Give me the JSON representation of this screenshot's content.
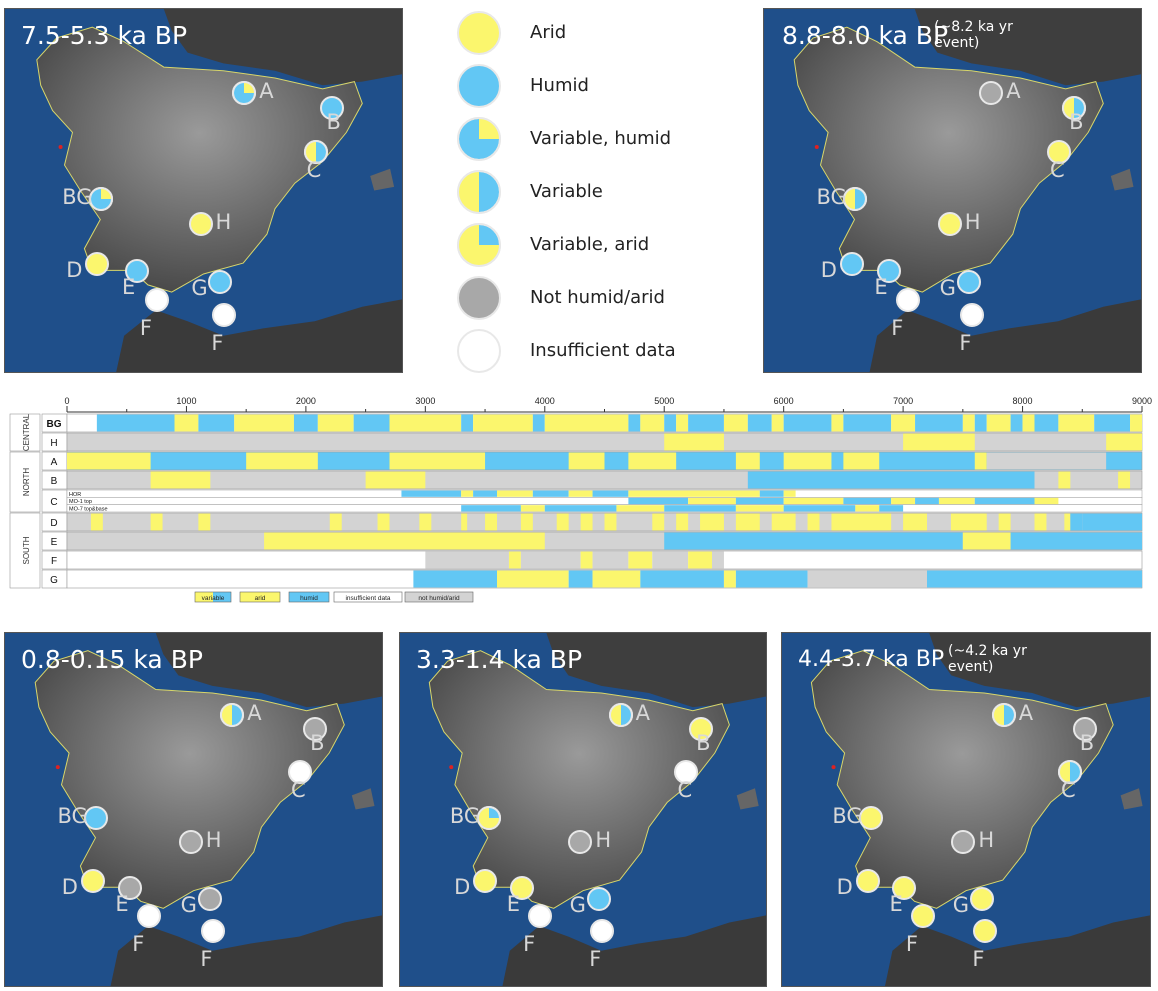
{
  "colors": {
    "arid": "#fbf66d",
    "humid": "#62c7f4",
    "grey": "#a8a8a8",
    "insufficient": "#ffffff",
    "tl_grey": "#d3d3d3",
    "sea": "#1f4f8a",
    "land": "#6e6e6e"
  },
  "legend": [
    {
      "type": "arid",
      "label": "Arid"
    },
    {
      "type": "humid",
      "label": "Humid"
    },
    {
      "type": "var_humid",
      "label": "Variable, humid"
    },
    {
      "type": "variable",
      "label": "Variable"
    },
    {
      "type": "var_arid",
      "label": "Variable, arid"
    },
    {
      "type": "grey",
      "label": "Not humid/arid"
    },
    {
      "type": "white",
      "label": "Insufficient data"
    }
  ],
  "maps": [
    {
      "id": "7.5-5.3",
      "title": "7.5-5.3 ka BP",
      "note": "",
      "sites": {
        "A": "var_humid",
        "B": "humid",
        "C": "variable",
        "BG": "var_humid",
        "H": "arid",
        "D": "arid",
        "E": "humid",
        "G": "humid",
        "F1": "white",
        "F2": "white"
      }
    },
    {
      "id": "8.8-8.0",
      "title": "8.8-8.0 ka BP",
      "note": "(~8.2 ka yr event)",
      "sites": {
        "A": "grey",
        "B": "variable",
        "C": "arid",
        "BG": "variable",
        "H": "arid",
        "D": "humid",
        "E": "humid",
        "G": "humid",
        "F1": "white",
        "F2": "white"
      }
    },
    {
      "id": "0.8-0.15",
      "title": "0.8-0.15 ka BP",
      "note": "",
      "sites": {
        "A": "variable",
        "B": "grey",
        "C": "white",
        "BG": "humid",
        "H": "grey",
        "D": "arid",
        "E": "grey",
        "G": "grey",
        "F1": "white",
        "F2": "white"
      }
    },
    {
      "id": "3.3-1.4",
      "title": "3.3-1.4 ka BP",
      "note": "",
      "sites": {
        "A": "variable",
        "B": "arid",
        "C": "white",
        "BG": "var_arid",
        "H": "grey",
        "D": "arid",
        "E": "arid",
        "G": "humid",
        "F1": "white",
        "F2": "white"
      }
    },
    {
      "id": "4.4-3.7",
      "title": "4.4-3.7 ka BP",
      "note": "(~4.2 ka yr event)",
      "sites": {
        "A": "variable",
        "B": "grey",
        "C": "variable",
        "BG": "arid",
        "H": "grey",
        "D": "arid",
        "E": "arid",
        "G": "arid",
        "F1": "arid",
        "F2": "arid"
      }
    }
  ],
  "site_labels": {
    "A": "A",
    "B": "B",
    "C": "C",
    "BG": "BG",
    "H": "H",
    "D": "D",
    "E": "E",
    "G": "G",
    "F1": "F",
    "F2": "F"
  },
  "timeline": {
    "axis_ticks": [
      "0",
      "1000",
      "2000",
      "3000",
      "4000",
      "5000",
      "6000",
      "7000",
      "8000",
      "9000"
    ],
    "xmax": 9000,
    "groups": [
      {
        "name": "CENTRAL",
        "rows": [
          "BG",
          "H"
        ]
      },
      {
        "name": "NORTH",
        "rows": [
          "A",
          "B",
          "C"
        ]
      },
      {
        "name": "SOUTH",
        "rows": [
          "D",
          "E",
          "F",
          "G"
        ]
      }
    ],
    "rows": [
      {
        "label": "BG",
        "bold": true,
        "bg": "white",
        "segs": [
          [
            250,
            900,
            "humid"
          ],
          [
            900,
            1100,
            "arid"
          ],
          [
            1100,
            1400,
            "humid"
          ],
          [
            1400,
            1900,
            "arid"
          ],
          [
            1900,
            2100,
            "humid"
          ],
          [
            2100,
            2400,
            "arid"
          ],
          [
            2400,
            2700,
            "humid"
          ],
          [
            2700,
            3300,
            "arid"
          ],
          [
            3300,
            3400,
            "humid"
          ],
          [
            3400,
            3900,
            "arid"
          ],
          [
            3900,
            4000,
            "humid"
          ],
          [
            4000,
            4700,
            "arid"
          ],
          [
            4700,
            4800,
            "humid"
          ],
          [
            4800,
            5000,
            "arid"
          ],
          [
            5000,
            5100,
            "humid"
          ],
          [
            5100,
            5200,
            "arid"
          ],
          [
            5200,
            5500,
            "humid"
          ],
          [
            5500,
            5700,
            "arid"
          ],
          [
            5700,
            5900,
            "humid"
          ],
          [
            5900,
            6000,
            "arid"
          ],
          [
            6000,
            6400,
            "humid"
          ],
          [
            6400,
            6500,
            "arid"
          ],
          [
            6500,
            6900,
            "humid"
          ],
          [
            6900,
            7100,
            "arid"
          ],
          [
            7100,
            7500,
            "humid"
          ],
          [
            7500,
            7600,
            "arid"
          ],
          [
            7600,
            7700,
            "humid"
          ],
          [
            7700,
            7900,
            "arid"
          ],
          [
            7900,
            8000,
            "humid"
          ],
          [
            8000,
            8100,
            "arid"
          ],
          [
            8100,
            8300,
            "humid"
          ],
          [
            8300,
            8600,
            "arid"
          ],
          [
            8600,
            8900,
            "humid"
          ],
          [
            8900,
            9000,
            "arid"
          ]
        ]
      },
      {
        "label": "H",
        "bold": false,
        "bg": "grey",
        "segs": [
          [
            5000,
            5500,
            "arid"
          ],
          [
            7000,
            7600,
            "arid"
          ],
          [
            8700,
            9000,
            "arid"
          ]
        ]
      },
      {
        "label": "A",
        "bold": false,
        "bg": "humid",
        "segs": [
          [
            0,
            700,
            "arid"
          ],
          [
            1500,
            2100,
            "arid"
          ],
          [
            2700,
            3500,
            "arid"
          ],
          [
            4200,
            4500,
            "arid"
          ],
          [
            4700,
            5100,
            "arid"
          ],
          [
            5600,
            5800,
            "arid"
          ],
          [
            6000,
            6400,
            "arid"
          ],
          [
            6500,
            6800,
            "arid"
          ],
          [
            7600,
            7700,
            "arid"
          ],
          [
            7700,
            8700,
            "grey"
          ]
        ]
      },
      {
        "label": "B",
        "bold": false,
        "bg": "grey",
        "segs": [
          [
            700,
            1200,
            "arid"
          ],
          [
            2500,
            3000,
            "arid"
          ],
          [
            5700,
            8100,
            "humid"
          ],
          [
            8300,
            8400,
            "arid"
          ],
          [
            8800,
            8900,
            "arid"
          ]
        ]
      },
      {
        "label": "C",
        "bold": false,
        "bg": "white",
        "sub": [
          {
            "label": "HOR",
            "segs": [
              [
                2800,
                3300,
                "humid"
              ],
              [
                3300,
                3400,
                "arid"
              ],
              [
                3400,
                3600,
                "humid"
              ],
              [
                3600,
                3900,
                "arid"
              ],
              [
                3900,
                4200,
                "humid"
              ],
              [
                4200,
                4400,
                "arid"
              ],
              [
                4400,
                4700,
                "humid"
              ],
              [
                4700,
                5800,
                "arid"
              ],
              [
                5800,
                6000,
                "humid"
              ],
              [
                6000,
                6100,
                "arid"
              ]
            ]
          },
          {
            "label": "MO-1 top",
            "segs": [
              [
                4700,
                5200,
                "humid"
              ],
              [
                5200,
                5600,
                "arid"
              ],
              [
                5600,
                6000,
                "humid"
              ],
              [
                6000,
                6500,
                "arid"
              ],
              [
                6500,
                6900,
                "humid"
              ],
              [
                6900,
                7100,
                "arid"
              ],
              [
                7100,
                7300,
                "humid"
              ],
              [
                7300,
                7600,
                "arid"
              ],
              [
                7600,
                8100,
                "humid"
              ],
              [
                8100,
                8300,
                "arid"
              ]
            ]
          },
          {
            "label": "MO-7 top&base",
            "segs": [
              [
                3300,
                3800,
                "humid"
              ],
              [
                3800,
                4000,
                "arid"
              ],
              [
                4000,
                4600,
                "humid"
              ],
              [
                4600,
                5000,
                "arid"
              ],
              [
                5000,
                5600,
                "humid"
              ],
              [
                5600,
                6000,
                "arid"
              ],
              [
                6000,
                6600,
                "humid"
              ],
              [
                6600,
                6800,
                "arid"
              ],
              [
                6800,
                7000,
                "humid"
              ]
            ]
          }
        ]
      },
      {
        "label": "D",
        "bold": false,
        "bg": "grey",
        "segs": [
          [
            200,
            300,
            "arid"
          ],
          [
            700,
            800,
            "arid"
          ],
          [
            1100,
            1200,
            "arid"
          ],
          [
            2200,
            2300,
            "arid"
          ],
          [
            2600,
            2700,
            "arid"
          ],
          [
            2950,
            3050,
            "arid"
          ],
          [
            3300,
            3350,
            "arid"
          ],
          [
            3500,
            3600,
            "arid"
          ],
          [
            3800,
            3900,
            "arid"
          ],
          [
            4100,
            4200,
            "arid"
          ],
          [
            4300,
            4400,
            "arid"
          ],
          [
            4500,
            4600,
            "arid"
          ],
          [
            4900,
            5000,
            "arid"
          ],
          [
            5100,
            5200,
            "arid"
          ],
          [
            5300,
            5500,
            "arid"
          ],
          [
            5600,
            5800,
            "arid"
          ],
          [
            5900,
            6100,
            "arid"
          ],
          [
            6200,
            6300,
            "arid"
          ],
          [
            6400,
            6900,
            "arid"
          ],
          [
            7000,
            7200,
            "arid"
          ],
          [
            7400,
            7700,
            "arid"
          ],
          [
            7800,
            7900,
            "arid"
          ],
          [
            8100,
            8200,
            "arid"
          ],
          [
            8350,
            8400,
            "arid"
          ],
          [
            8400,
            8500,
            "humid"
          ],
          [
            8500,
            9000,
            "humid"
          ]
        ]
      },
      {
        "label": "E",
        "bold": false,
        "bg": "grey",
        "segs": [
          [
            1650,
            4000,
            "arid"
          ],
          [
            5000,
            7500,
            "humid"
          ],
          [
            7500,
            7900,
            "arid"
          ],
          [
            7900,
            9000,
            "humid"
          ]
        ]
      },
      {
        "label": "F",
        "bold": false,
        "bg": "white",
        "segs": [
          [
            3000,
            3700,
            "grey"
          ],
          [
            3700,
            3800,
            "arid"
          ],
          [
            3800,
            4300,
            "grey"
          ],
          [
            4300,
            4400,
            "arid"
          ],
          [
            4400,
            4700,
            "grey"
          ],
          [
            4700,
            4900,
            "arid"
          ],
          [
            4900,
            5200,
            "grey"
          ],
          [
            5200,
            5400,
            "arid"
          ],
          [
            5400,
            5500,
            "grey"
          ]
        ]
      },
      {
        "label": "G",
        "bold": false,
        "bg": "white",
        "segs": [
          [
            2900,
            3600,
            "humid"
          ],
          [
            3600,
            4200,
            "arid"
          ],
          [
            4200,
            4400,
            "humid"
          ],
          [
            4400,
            4800,
            "arid"
          ],
          [
            4800,
            5500,
            "humid"
          ],
          [
            5500,
            5600,
            "arid"
          ],
          [
            5600,
            6200,
            "humid"
          ],
          [
            6200,
            7200,
            "grey"
          ],
          [
            7200,
            9000,
            "humid"
          ]
        ]
      }
    ],
    "legend": [
      {
        "type": "variable",
        "label": "variable"
      },
      {
        "type": "arid",
        "label": "arid"
      },
      {
        "type": "humid",
        "label": "humid"
      },
      {
        "type": "white",
        "label": "insufficient data"
      },
      {
        "type": "grey",
        "label": "not humid/arid"
      }
    ]
  }
}
